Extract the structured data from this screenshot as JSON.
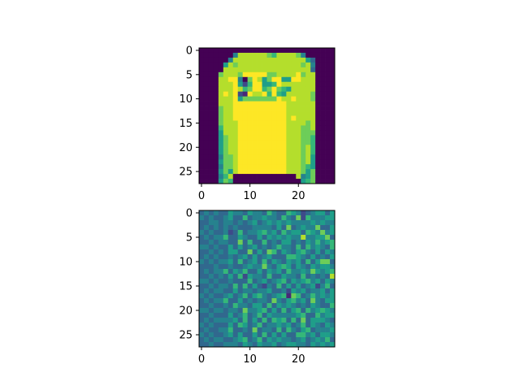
{
  "chart_data": [
    {
      "type": "heatmap",
      "title": "",
      "xlabel": "",
      "ylabel": "",
      "rows": 28,
      "cols": 28,
      "x_ticks": [
        0,
        10,
        20
      ],
      "y_ticks": [
        0,
        5,
        10,
        15,
        20,
        25
      ],
      "colormap": "viridis",
      "vmin": 0,
      "vmax": 1,
      "image": [
        "0000000000000000000000000000",
        "0000000488888876888874000000",
        "0000004888888888888888530000",
        "0000058788888888888887840000",
        "0000088888888888888888830000",
        "0000788879999977888897880000",
        "0000889940798579955998880000",
        "0000888952699556988888880000",
        "0000888986799679765888880000",
        "0000898921988969658888870000",
        "0000888957777777988988870000",
        "0000888999999999998888880000",
        "0000788999999999998888880000",
        "0000788999999999998888880000",
        "0000788999999999998988880000",
        "0000788899999999998888780000",
        "0000688899999999998887780000",
        "0000588899999999998887770000",
        "0000578899999999998887760000",
        "0000578899999999998887760000",
        "0000578899999999998887860000",
        "0000578899999999998887860000",
        "0000477899999999998887850000",
        "0000577899999999998887850000",
        "0000477899999999998887650000",
        "0000575899999999998887570000",
        "0000468000000000000084570000",
        "0000576000000000000005670000"
      ]
    },
    {
      "type": "heatmap",
      "title": "",
      "xlabel": "",
      "ylabel": "",
      "rows": 28,
      "cols": 28,
      "x_ticks": [
        0,
        10,
        20
      ],
      "y_ticks": [
        0,
        5,
        10,
        15,
        20,
        25
      ],
      "colormap": "viridis",
      "vmin": 0,
      "vmax": 1,
      "image": [
        "3434335443544364336542345535",
        "4343345336344544364372644455",
        "3344344343453454545444454544",
        "3434343433344443537345447335",
        "4343342363445645364553654745",
        "3434463354335354545448445573",
        "3343443373633634355343546456",
        "4434335353453434644363645436",
        "3343435533735376354356435354",
        "3434334345353453336654353435",
        "4343445363453635435453635773",
        "3334334334544743565354354554",
        "3434463546335354536445475456",
        "3343435362544363354436343438",
        "4434334333634534563545645354",
        "3343443636353243635353452463",
        "3434433534434453342545344535",
        "4343345346356434561763464545",
        "3434463353434437435645374355",
        "3343343644355363545434354336",
        "4434434437445635363563645654",
        "3343335346346354444456336455",
        "3434444536353636563637355543",
        "4343335365346344545346354354",
        "3433446334373443636435634445",
        "4343345353353635353366453554",
        "3434433456346354544345345463",
        "3343344435435445345544354545"
      ]
    }
  ]
}
